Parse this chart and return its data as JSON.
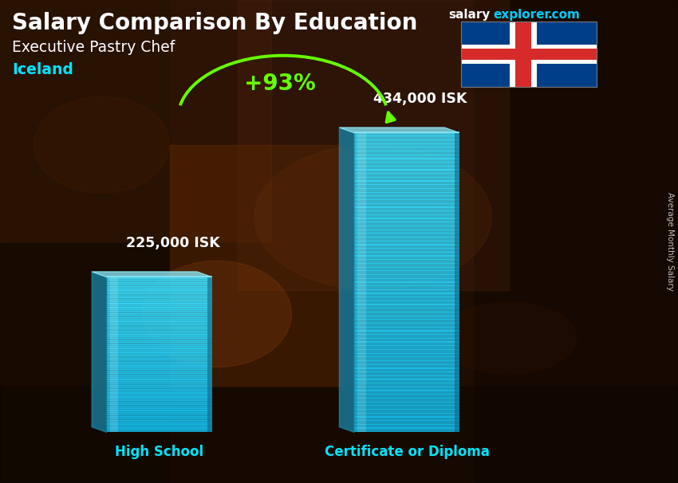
{
  "title": "Salary Comparison By Education",
  "subtitle": "Executive Pastry Chef",
  "country": "Iceland",
  "categories": [
    "High School",
    "Certificate or Diploma"
  ],
  "values": [
    225000,
    434000
  ],
  "value_labels": [
    "225,000 ISK",
    "434,000 ISK"
  ],
  "pct_change": "+93%",
  "bar_face_color": "#3dd9f5",
  "bar_left_color": "#1a9fc0",
  "bar_right_color": "#2ab8d8",
  "bar_top_color": "#7eeaf8",
  "ylabel": "Average Monthly Salary",
  "title_color": "#ffffff",
  "subtitle_color": "#ffffff",
  "country_color": "#00e5ff",
  "pct_color": "#66ff00",
  "value_label_color": "#ffffff",
  "category_label_color": "#00e5ff",
  "arrow_color": "#66ff00",
  "bg_color": "#2a1505",
  "site_salary_color": "#ffffff",
  "site_explorer_color": "#00ccff"
}
